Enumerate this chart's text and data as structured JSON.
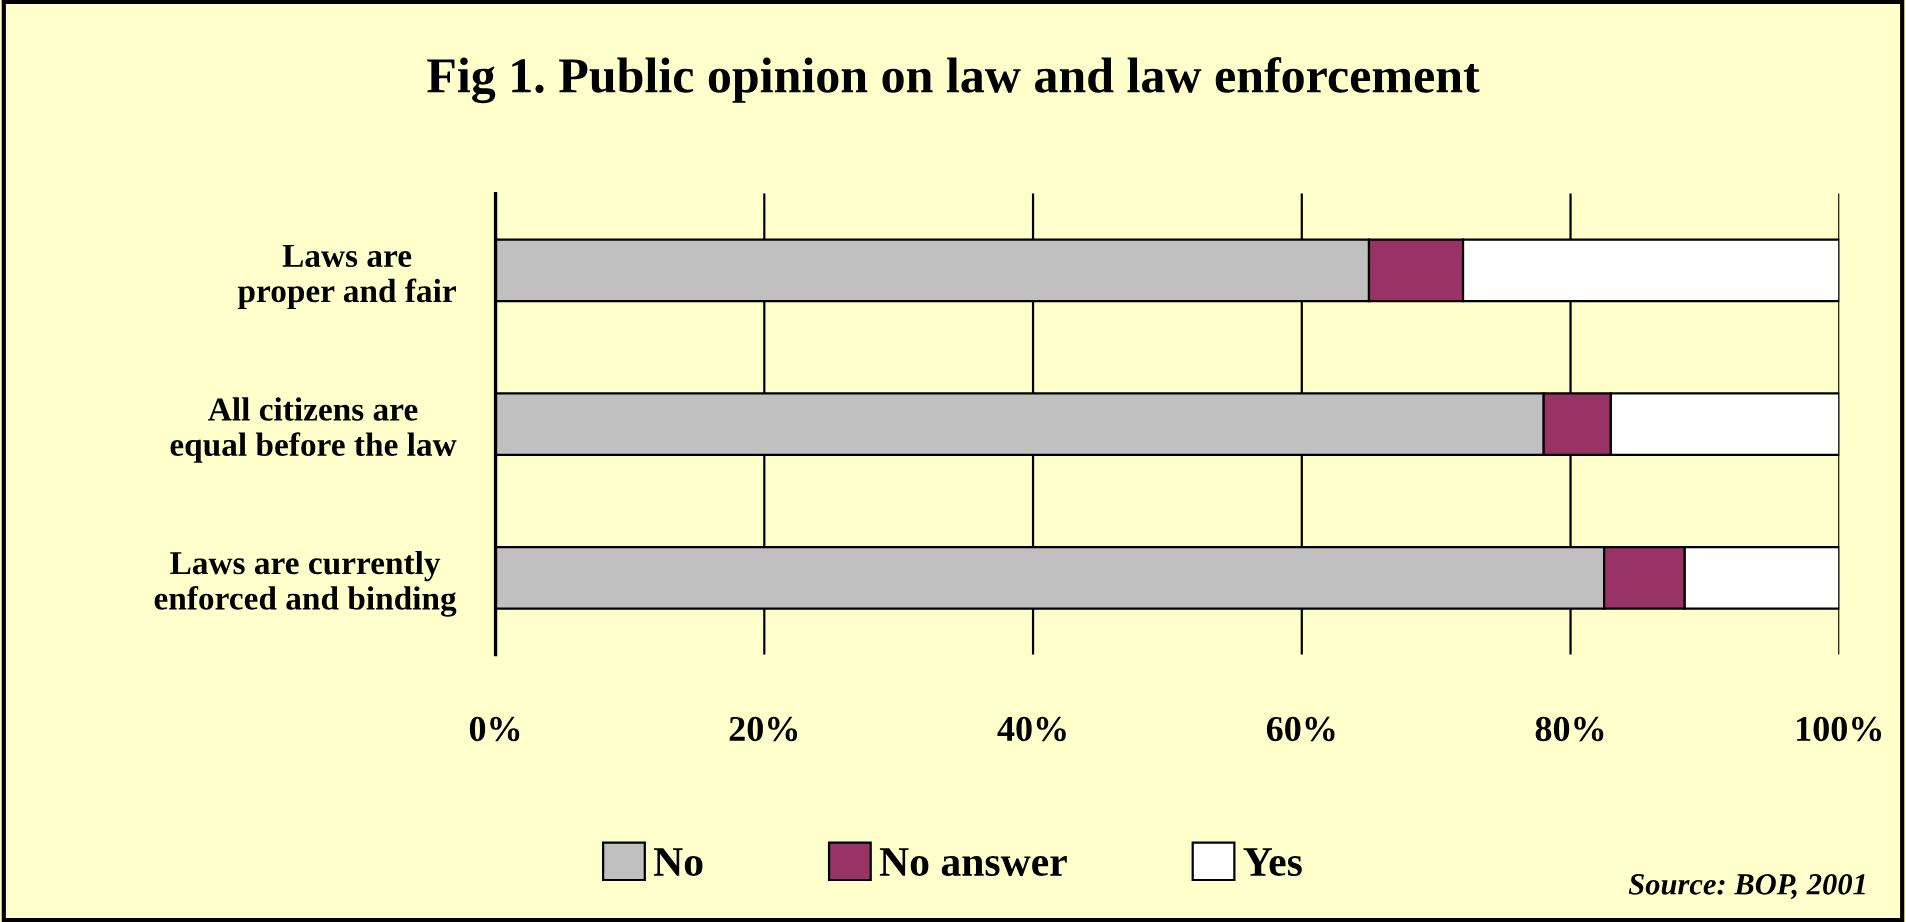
{
  "chart_data": {
    "type": "bar",
    "orientation": "horizontal",
    "stacked": true,
    "title": "Fig 1. Public opinion on law and law enforcement",
    "categories": [
      "Laws are proper and fair",
      "All citizens are equal before the law",
      "Laws are currently enforced and binding"
    ],
    "series": [
      {
        "name": "No",
        "color": "#c0c0c0",
        "values": [
          65,
          78,
          82.5
        ]
      },
      {
        "name": "No answer",
        "color": "#993366",
        "values": [
          7,
          5,
          6
        ]
      },
      {
        "name": "Yes",
        "color": "#ffffff",
        "values": [
          28,
          17,
          11.5
        ]
      }
    ],
    "xlim": [
      0,
      100
    ],
    "xticks": [
      {
        "value": 0,
        "label": "0%"
      },
      {
        "value": 20,
        "label": "20%"
      },
      {
        "value": 40,
        "label": "40%"
      },
      {
        "value": 60,
        "label": "60%"
      },
      {
        "value": 80,
        "label": "80%"
      },
      {
        "value": 100,
        "label": "100%"
      }
    ],
    "grid": "x",
    "legend": "bottom",
    "annotations": [
      "Source: BOP, 2001"
    ]
  }
}
